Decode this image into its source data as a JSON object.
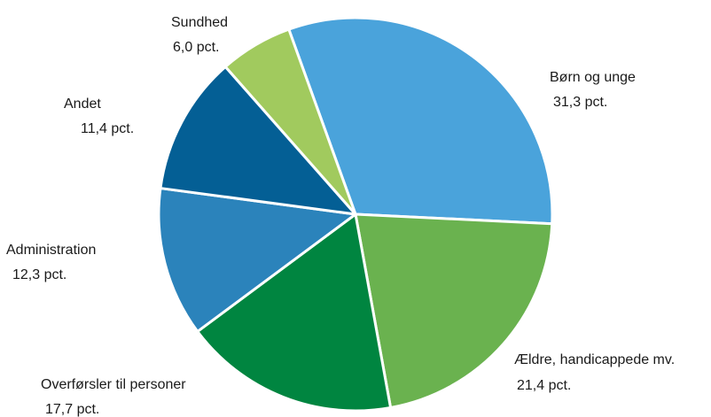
{
  "chart_data": {
    "type": "pie",
    "title": "",
    "start_angle_deg": -19.8,
    "direction": "clockwise",
    "slices": [
      {
        "label": "Børn og unge",
        "value_label": "31,3 pct.",
        "value": 31.3,
        "color": "#4aa3db"
      },
      {
        "label": "Ældre, handicappede mv.",
        "value_label": "21,4 pct.",
        "value": 21.4,
        "color": "#6ab24f"
      },
      {
        "label": "Overførsler til personer",
        "value_label": "17,7 pct.",
        "value": 17.7,
        "color": "#008540"
      },
      {
        "label": "Administration",
        "value_label": "12,3 pct.",
        "value": 12.3,
        "color": "#2b83bb"
      },
      {
        "label": "Andet",
        "value_label": "11,4 pct.",
        "value": 11.4,
        "color": "#045f95"
      },
      {
        "label": "Sundhed",
        "value_label": "6,0 pct.",
        "value": 6.0,
        "color": "#a1ca5e"
      }
    ]
  }
}
